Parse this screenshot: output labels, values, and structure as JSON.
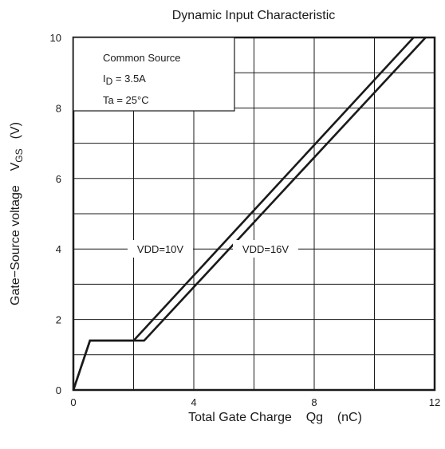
{
  "chart_data": {
    "type": "line",
    "title": "Dynamic Input Characteristic",
    "xlabel": "Total Gate Charge    Qg    (nC)",
    "ylabel": "Gate−Source voltage    V",
    "ylabel_sub": "GS",
    "ylabel_unit": "(V)",
    "xlim": [
      0,
      12
    ],
    "ylim": [
      0,
      10
    ],
    "x_ticks": [
      "0",
      "4",
      "8",
      "12"
    ],
    "y_ticks": [
      "0",
      "2",
      "4",
      "6",
      "8",
      "10"
    ],
    "grid": true,
    "series": [
      {
        "name": "VDD=10V",
        "x": [
          0,
          0.55,
          2.0,
          11.3
        ],
        "y": [
          0,
          1.4,
          1.4,
          10
        ]
      },
      {
        "name": "VDD=16V",
        "x": [
          0,
          0.55,
          2.35,
          11.7
        ],
        "y": [
          0,
          1.4,
          1.4,
          10
        ]
      }
    ],
    "conditions": {
      "line1": "Common Source",
      "line2_main": "I",
      "line2_sub": "D",
      "line2_rest": " = 3.5A",
      "line3": "Ta = 25°C"
    }
  }
}
